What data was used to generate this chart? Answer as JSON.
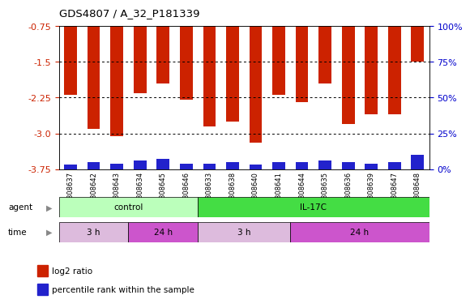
{
  "title": "GDS4807 / A_32_P181339",
  "samples": [
    "GSM808637",
    "GSM808642",
    "GSM808643",
    "GSM808634",
    "GSM808645",
    "GSM808646",
    "GSM808633",
    "GSM808638",
    "GSM808640",
    "GSM808641",
    "GSM808644",
    "GSM808635",
    "GSM808636",
    "GSM808639",
    "GSM808647",
    "GSM808648"
  ],
  "log2_ratio": [
    -2.2,
    -2.9,
    -3.05,
    -2.15,
    -1.95,
    -2.3,
    -2.85,
    -2.75,
    -3.2,
    -2.2,
    -2.35,
    -1.95,
    -2.8,
    -2.6,
    -2.6,
    -1.5
  ],
  "percentile": [
    3,
    5,
    4,
    6,
    7,
    4,
    4,
    5,
    3,
    5,
    5,
    6,
    5,
    4,
    5,
    10
  ],
  "ymin": -3.75,
  "ymax": -0.75,
  "yticks_left": [
    -3.75,
    -3.0,
    -2.25,
    -1.5,
    -0.75
  ],
  "yticks_right_vals": [
    0,
    25,
    50,
    75,
    100
  ],
  "hlines": [
    -3.0,
    -2.25,
    -1.5
  ],
  "bar_color_red": "#cc2200",
  "bar_color_blue": "#2222cc",
  "agent_groups": [
    {
      "label": "control",
      "start": 0,
      "end": 6,
      "color": "#bbffbb"
    },
    {
      "label": "IL-17C",
      "start": 6,
      "end": 16,
      "color": "#44dd44"
    }
  ],
  "time_groups": [
    {
      "label": "3 h",
      "start": 0,
      "end": 3,
      "color": "#ddbbdd"
    },
    {
      "label": "24 h",
      "start": 3,
      "end": 6,
      "color": "#cc55cc"
    },
    {
      "label": "3 h",
      "start": 6,
      "end": 10,
      "color": "#ddbbdd"
    },
    {
      "label": "24 h",
      "start": 10,
      "end": 16,
      "color": "#cc55cc"
    }
  ],
  "bar_width": 0.55,
  "background_color": "#ffffff",
  "plot_bg": "#ffffff",
  "tick_color_left": "#cc2200",
  "tick_color_right": "#0000cc",
  "legend_red": "log2 ratio",
  "legend_blue": "percentile rank within the sample"
}
